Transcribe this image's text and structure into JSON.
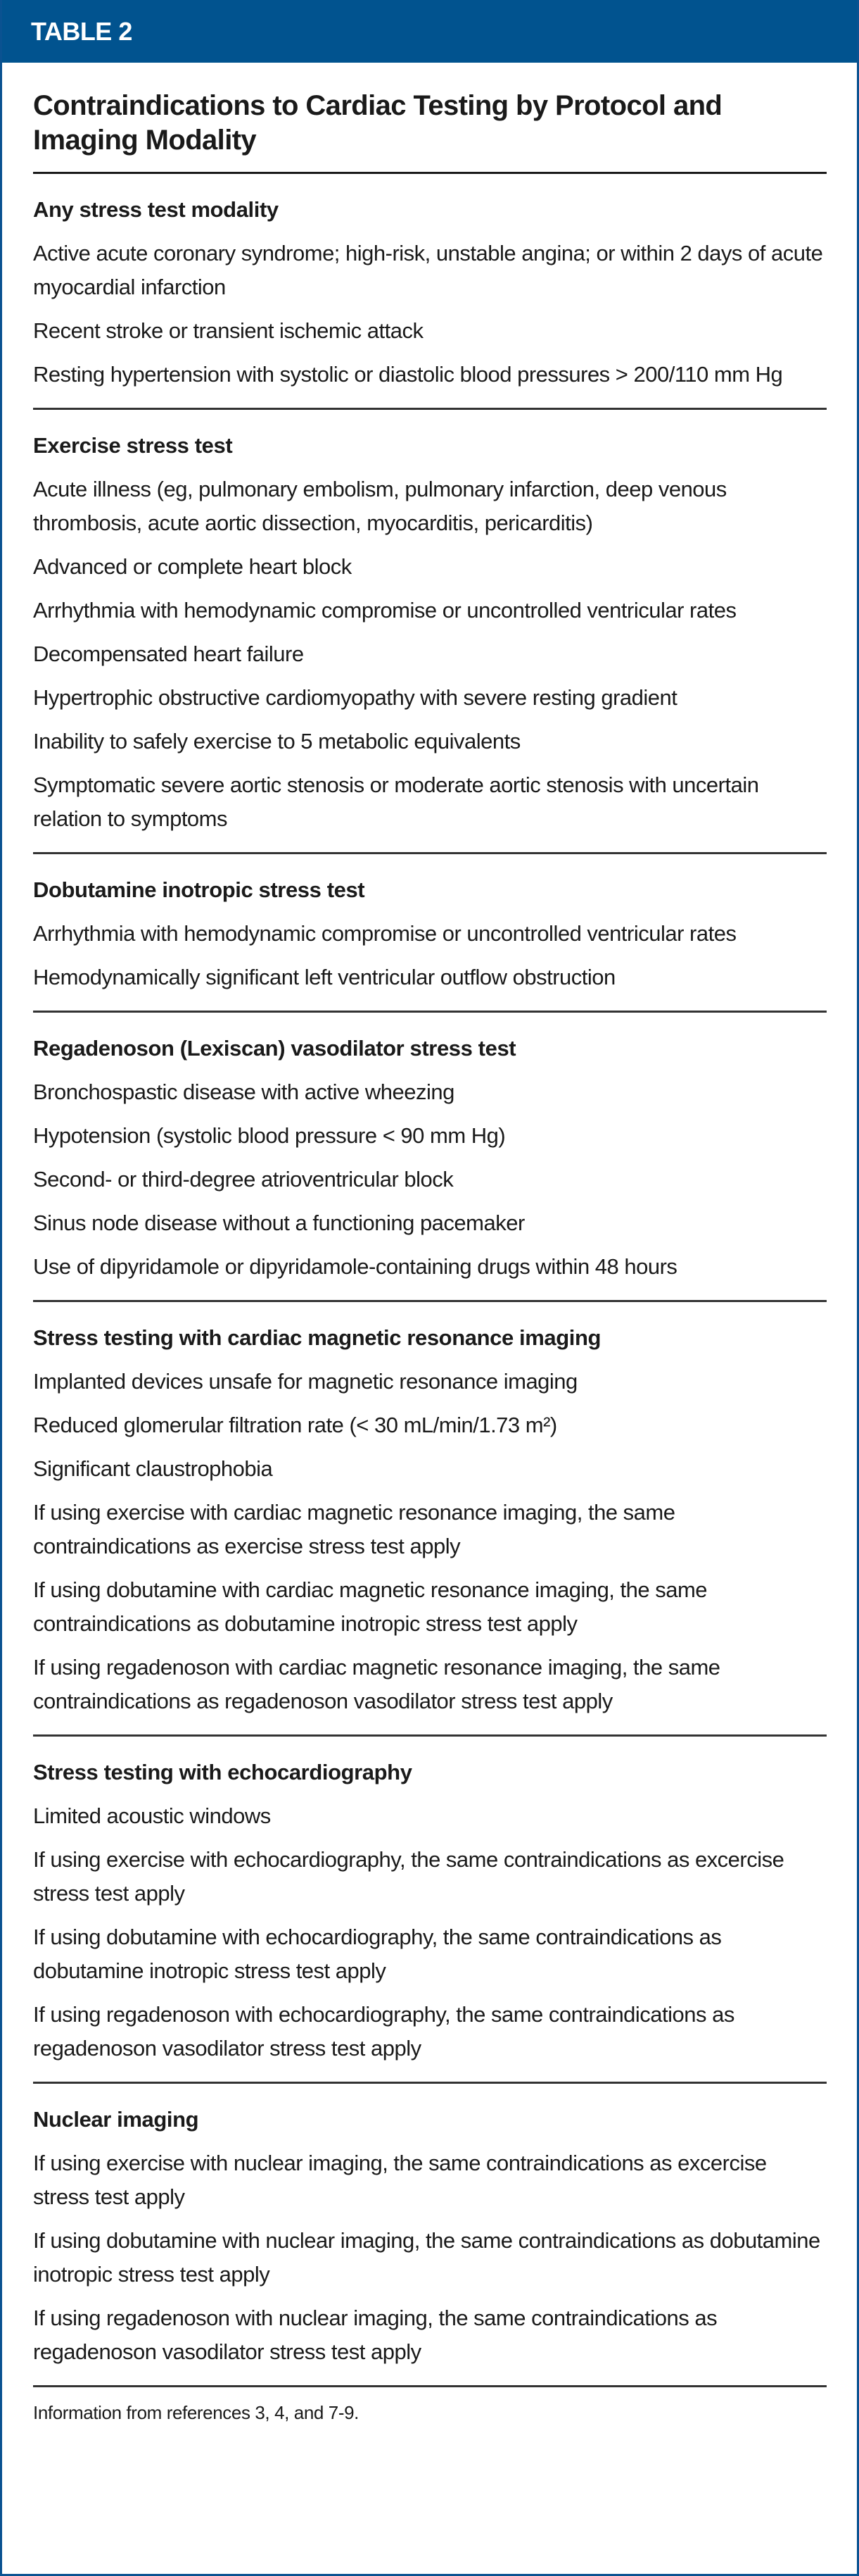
{
  "header": {
    "label": "TABLE 2",
    "color": "#01538f"
  },
  "title": "Contraindications to Cardiac Testing by Protocol and Imaging Modality",
  "sections": [
    {
      "heading": "Any stress test modality",
      "items": [
        "Active acute coronary syndrome; high-risk, unstable angina; or within 2 days of acute myocardial infarction",
        "Recent stroke or transient ischemic attack",
        "Resting hypertension with systolic or diastolic blood pressures > 200/110 mm Hg"
      ]
    },
    {
      "heading": "Exercise stress test",
      "items": [
        "Acute illness (eg, pulmonary embolism, pulmonary infarction, deep venous thrombosis, acute aortic dissection, myocarditis, pericarditis)",
        "Advanced or complete heart block",
        "Arrhythmia with hemodynamic compromise or uncontrolled ventricular rates",
        "Decompensated heart failure",
        "Hypertrophic obstructive cardiomyopathy with severe resting gradient",
        "Inability to safely exercise to 5 metabolic equivalents",
        "Symptomatic severe aortic stenosis or moderate aortic stenosis with uncertain relation to symptoms"
      ]
    },
    {
      "heading": "Dobutamine inotropic stress test",
      "items": [
        "Arrhythmia with hemodynamic compromise or uncontrolled ventricular rates",
        "Hemodynamically significant left ventricular outflow obstruction"
      ]
    },
    {
      "heading": "Regadenoson (Lexiscan) vasodilator stress test",
      "items": [
        "Bronchospastic disease with active wheezing",
        "Hypotension (systolic blood pressure < 90 mm Hg)",
        "Second- or third-degree atrioventricular block",
        "Sinus node disease without a functioning pacemaker",
        "Use of dipyridamole or dipyridamole-containing drugs within 48 hours"
      ]
    },
    {
      "heading": "Stress testing with cardiac magnetic resonance imaging",
      "items": [
        "Implanted devices unsafe for magnetic resonance imaging",
        "Reduced glomerular filtration rate (< 30 mL/min/1.73 m²)",
        "Significant claustrophobia",
        "If using exercise with cardiac magnetic resonance imaging, the same contraindications as exercise stress test apply",
        "If using dobutamine with cardiac magnetic resonance imaging, the same contraindications as dobutamine inotropic stress test apply",
        "If using regadenoson with cardiac magnetic resonance imaging, the same contraindications as regadenoson vasodilator stress test apply"
      ]
    },
    {
      "heading": "Stress testing with echocardiography",
      "items": [
        "Limited acoustic windows",
        "If using exercise with echocardiography, the same contraindications as excercise stress test apply",
        "If using dobutamine with echocardiography, the same contraindications as dobutamine inotropic stress test apply",
        "If using regadenoson with echocardiography, the same contraindications as regadenoson vasodilator stress test apply"
      ]
    },
    {
      "heading": "Nuclear imaging",
      "items": [
        "If using exercise with nuclear imaging, the same contraindications as excercise stress test apply",
        "If using dobutamine with nuclear imaging, the same contraindications as dobutamine inotropic stress test apply",
        "If using regadenoson with nuclear imaging, the same contraindications as regadenoson vasodilator stress test apply"
      ]
    }
  ],
  "footer": "Information from references 3, 4, and 7-9."
}
